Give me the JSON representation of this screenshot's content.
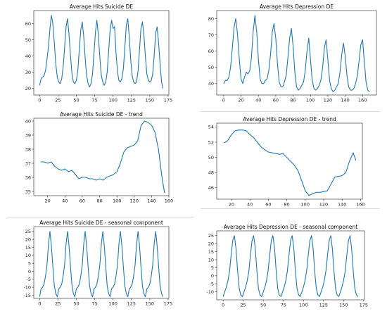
{
  "chart_data": [
    {
      "id": "p1",
      "type": "line",
      "title": "Average Hits Suicide DE",
      "xlim": [
        -8,
        176
      ],
      "ylim": [
        16,
        68
      ],
      "xticks": [
        0,
        25,
        50,
        75,
        100,
        125,
        150,
        175
      ],
      "yticks": [
        20,
        30,
        40,
        50,
        60
      ],
      "color": "#1f77b4",
      "x": [
        0,
        2,
        4,
        6,
        8,
        10,
        12,
        14,
        16,
        18,
        20,
        22,
        24,
        26,
        28,
        30,
        32,
        34,
        36,
        38,
        40,
        42,
        44,
        46,
        48,
        50,
        52,
        54,
        56,
        58,
        60,
        62,
        64,
        66,
        68,
        70,
        72,
        74,
        76,
        78,
        80,
        82,
        84,
        86,
        88,
        90,
        92,
        94,
        96,
        98,
        100,
        102,
        104,
        106,
        108,
        110,
        112,
        114,
        116,
        118,
        120,
        122,
        124,
        126,
        128,
        130,
        132,
        134,
        136,
        138,
        140,
        142,
        144,
        146,
        148,
        150,
        152,
        154,
        156,
        158,
        160,
        162,
        164,
        166,
        168
      ],
      "y": [
        22,
        26,
        27,
        28,
        31,
        38,
        46,
        57,
        65,
        60,
        48,
        35,
        27,
        24,
        23,
        26,
        33,
        45,
        58,
        63,
        53,
        40,
        29,
        24,
        23,
        25,
        31,
        44,
        56,
        61,
        52,
        39,
        28,
        23,
        21,
        23,
        29,
        42,
        55,
        62,
        53,
        39,
        28,
        24,
        22,
        24,
        30,
        43,
        56,
        62,
        57,
        58,
        42,
        30,
        25,
        24,
        26,
        32,
        45,
        59,
        63,
        52,
        38,
        28,
        24,
        23,
        24,
        31,
        44,
        57,
        61,
        53,
        40,
        29,
        25,
        24,
        25,
        29,
        40,
        54,
        58,
        48,
        35,
        24,
        20
      ]
    },
    {
      "id": "p2",
      "type": "line",
      "title": "Average Hits Depression DE",
      "xlim": [
        -8,
        176
      ],
      "ylim": [
        33,
        85
      ],
      "xticks": [
        0,
        20,
        40,
        60,
        80,
        100,
        120,
        140,
        160
      ],
      "yticks": [
        40,
        50,
        60,
        70,
        80
      ],
      "color": "#1f77b4",
      "x": [
        0,
        2,
        4,
        6,
        8,
        10,
        12,
        14,
        16,
        18,
        20,
        22,
        24,
        26,
        28,
        30,
        32,
        34,
        36,
        38,
        40,
        42,
        44,
        46,
        48,
        50,
        52,
        54,
        56,
        58,
        60,
        62,
        64,
        66,
        68,
        70,
        72,
        74,
        76,
        78,
        80,
        82,
        84,
        86,
        88,
        90,
        92,
        94,
        96,
        98,
        100,
        102,
        104,
        106,
        108,
        110,
        112,
        114,
        116,
        118,
        120,
        122,
        124,
        126,
        128,
        130,
        132,
        134,
        136,
        138,
        140,
        142,
        144,
        146,
        148,
        150,
        152,
        154,
        156,
        158,
        160,
        162,
        164,
        166,
        168
      ],
      "y": [
        40,
        42,
        42,
        44,
        50,
        62,
        75,
        80,
        70,
        55,
        43,
        40,
        44,
        47,
        46,
        48,
        56,
        72,
        82,
        72,
        55,
        43,
        40,
        40,
        42,
        43,
        48,
        58,
        72,
        77,
        68,
        52,
        41,
        38,
        38,
        41,
        45,
        56,
        68,
        74,
        63,
        47,
        38,
        36,
        37,
        39,
        41,
        48,
        60,
        68,
        55,
        42,
        37,
        36,
        37,
        39,
        42,
        50,
        62,
        67,
        55,
        42,
        37,
        35,
        36,
        38,
        40,
        47,
        58,
        65,
        57,
        45,
        38,
        36,
        36,
        37,
        40,
        45,
        54,
        64,
        67,
        54,
        41,
        36,
        35
      ]
    },
    {
      "id": "p3",
      "type": "line",
      "title": "Average Hits Suicide DE - trend",
      "xlim": [
        4,
        160
      ],
      "ylim": [
        34.7,
        40.2
      ],
      "xticks": [
        20,
        40,
        60,
        80,
        100,
        120,
        140,
        160
      ],
      "yticks": [
        35,
        36,
        37,
        38,
        39,
        40
      ],
      "color": "#1f77b4",
      "x": [
        12,
        16,
        20,
        24,
        28,
        32,
        36,
        40,
        44,
        48,
        52,
        56,
        60,
        64,
        68,
        72,
        76,
        80,
        84,
        88,
        92,
        96,
        100,
        104,
        108,
        112,
        116,
        120,
        124,
        128,
        132,
        136,
        140,
        144,
        148,
        152,
        155
      ],
      "y": [
        37.1,
        37.1,
        37.0,
        37.1,
        36.8,
        36.6,
        36.5,
        36.6,
        36.4,
        36.5,
        36.2,
        35.9,
        36.0,
        36.0,
        35.9,
        35.9,
        35.8,
        35.9,
        35.8,
        36.0,
        36.1,
        36.2,
        36.4,
        37.0,
        37.8,
        38.1,
        38.2,
        38.3,
        38.6,
        39.7,
        40.0,
        39.9,
        39.7,
        39.2,
        38.0,
        36.0,
        34.9
      ]
    },
    {
      "id": "p4",
      "type": "line",
      "title": "Average Hits Depression DE - trend",
      "xlim": [
        4,
        162
      ],
      "ylim": [
        44.5,
        54.5
      ],
      "xticks": [
        20,
        40,
        60,
        80,
        100,
        120,
        140,
        160
      ],
      "yticks": [
        46,
        48,
        50,
        52,
        54
      ],
      "color": "#1f77b4",
      "x": [
        12,
        16,
        20,
        24,
        28,
        32,
        36,
        40,
        44,
        48,
        52,
        56,
        60,
        64,
        68,
        72,
        76,
        80,
        84,
        88,
        92,
        96,
        100,
        104,
        108,
        112,
        116,
        120,
        124,
        128,
        132,
        136,
        140,
        144,
        148,
        152,
        155
      ],
      "y": [
        51.9,
        52.2,
        53.0,
        53.5,
        53.6,
        53.6,
        53.5,
        53.0,
        52.6,
        52.0,
        51.4,
        51.0,
        50.7,
        50.6,
        50.5,
        50.4,
        50.5,
        50.0,
        49.5,
        49.0,
        48.3,
        47.0,
        45.6,
        45.0,
        45.2,
        45.4,
        45.4,
        45.5,
        45.6,
        46.5,
        47.4,
        47.5,
        47.6,
        48.0,
        49.5,
        50.6,
        49.6
      ]
    },
    {
      "id": "p5",
      "type": "line",
      "title": "Average Hits Suicide DE - seasonal component",
      "xlim": [
        -8,
        176
      ],
      "ylim": [
        -17,
        28
      ],
      "xticks": [
        0,
        25,
        50,
        75,
        100,
        125,
        150,
        175
      ],
      "yticks": [
        -15,
        -10,
        -5,
        0,
        5,
        10,
        15,
        20,
        25
      ],
      "color": "#1f77b4",
      "period": 24,
      "x_start": 0,
      "x_end": 168,
      "phase": [
        [
          0,
          -16
        ],
        [
          2,
          -11
        ],
        [
          4,
          -10
        ],
        [
          6,
          -8
        ],
        [
          8,
          -3
        ],
        [
          10,
          4
        ],
        [
          12,
          17
        ],
        [
          14,
          25
        ],
        [
          16,
          16
        ],
        [
          18,
          3
        ],
        [
          20,
          -9
        ],
        [
          22,
          -14
        ],
        [
          24,
          -16
        ]
      ]
    },
    {
      "id": "p6",
      "type": "line",
      "title": "Average Hits Depression DE - seasonal component",
      "xlim": [
        -8,
        176
      ],
      "ylim": [
        -15,
        28
      ],
      "xticks": [
        0,
        25,
        50,
        75,
        100,
        125,
        150,
        175
      ],
      "yticks": [
        -10,
        -5,
        0,
        5,
        10,
        15,
        20,
        25
      ],
      "color": "#1f77b4",
      "period": 24,
      "x_start": 0,
      "x_end": 168,
      "phase": [
        [
          0,
          -13
        ],
        [
          2,
          -10
        ],
        [
          4,
          -7
        ],
        [
          6,
          -3
        ],
        [
          8,
          3
        ],
        [
          10,
          13
        ],
        [
          12,
          22
        ],
        [
          14,
          25
        ],
        [
          16,
          17
        ],
        [
          18,
          3
        ],
        [
          20,
          -8
        ],
        [
          22,
          -12
        ],
        [
          24,
          -13
        ]
      ]
    }
  ]
}
